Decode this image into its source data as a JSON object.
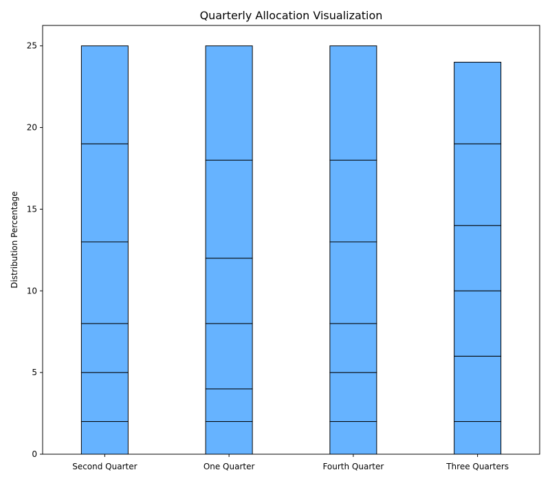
{
  "chart_data": {
    "type": "bar",
    "stacked": true,
    "title": "Quarterly Allocation Visualization",
    "xlabel": "",
    "ylabel": "Distribution Percentage",
    "categories": [
      "Second Quarter",
      "One Quarter",
      "Fourth Quarter",
      "Three Quarters"
    ],
    "segment_boundaries": [
      [
        0,
        2,
        5,
        8,
        13,
        19,
        25
      ],
      [
        0,
        2,
        4,
        8,
        12,
        18,
        25
      ],
      [
        0,
        2,
        5,
        8,
        13,
        18,
        25
      ],
      [
        0,
        2,
        6,
        10,
        14,
        19,
        24
      ]
    ],
    "totals": [
      25,
      25,
      25,
      24
    ],
    "ylim": [
      0,
      26.25
    ],
    "yticks": [
      0,
      5,
      10,
      15,
      20,
      25
    ],
    "grid": false,
    "legend": "none",
    "bar_color": "#66b3ff",
    "edge_color": "#000000"
  }
}
